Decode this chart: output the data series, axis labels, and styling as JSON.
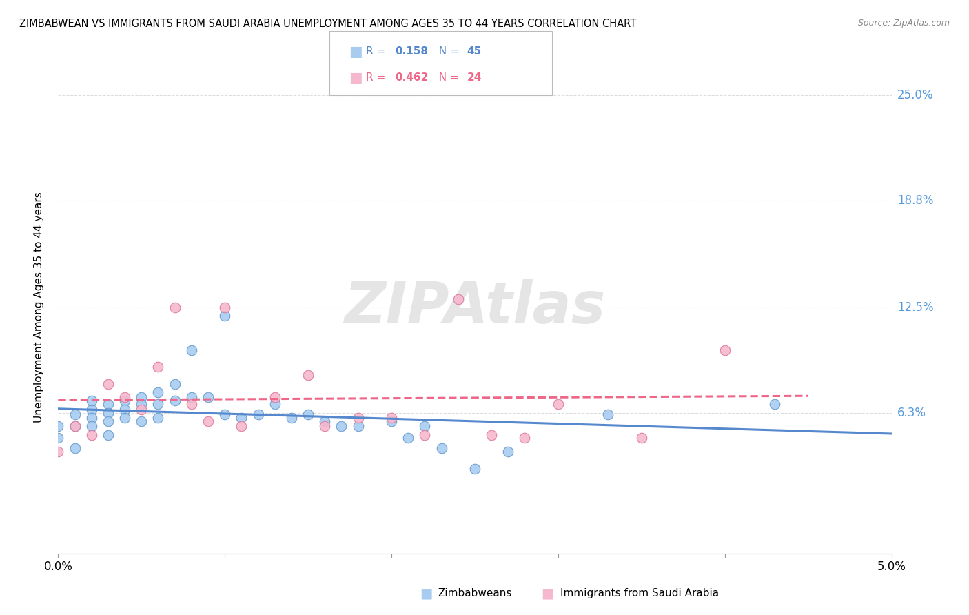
{
  "title": "ZIMBABWEAN VS IMMIGRANTS FROM SAUDI ARABIA UNEMPLOYMENT AMONG AGES 35 TO 44 YEARS CORRELATION CHART",
  "source": "Source: ZipAtlas.com",
  "ylabel_labels": [
    "6.3%",
    "12.5%",
    "18.8%",
    "25.0%"
  ],
  "ylabel_values": [
    0.063,
    0.125,
    0.188,
    0.25
  ],
  "xlim": [
    0.0,
    0.05
  ],
  "ylim": [
    -0.02,
    0.27
  ],
  "watermark": "ZIPAtlas",
  "color_blue": "#A8CCF0",
  "color_pink": "#F5B8CE",
  "color_blue_edge": "#6699CC",
  "color_pink_edge": "#DD7799",
  "color_line_blue": "#5588CC",
  "color_line_pink": "#EE6688",
  "color_ylabel": "#5599DD",
  "grid_color": "#DDDDDD",
  "background_color": "#FFFFFF",
  "zim_x": [
    0.0,
    0.0,
    0.001,
    0.001,
    0.001,
    0.002,
    0.002,
    0.002,
    0.002,
    0.003,
    0.003,
    0.003,
    0.003,
    0.004,
    0.004,
    0.004,
    0.005,
    0.005,
    0.005,
    0.006,
    0.006,
    0.006,
    0.007,
    0.007,
    0.008,
    0.008,
    0.009,
    0.01,
    0.01,
    0.011,
    0.012,
    0.013,
    0.014,
    0.015,
    0.016,
    0.017,
    0.018,
    0.02,
    0.021,
    0.022,
    0.023,
    0.025,
    0.027,
    0.033,
    0.043
  ],
  "zim_y": [
    0.055,
    0.048,
    0.062,
    0.055,
    0.042,
    0.065,
    0.06,
    0.055,
    0.07,
    0.068,
    0.063,
    0.058,
    0.05,
    0.07,
    0.065,
    0.06,
    0.072,
    0.068,
    0.058,
    0.075,
    0.068,
    0.06,
    0.08,
    0.07,
    0.1,
    0.072,
    0.072,
    0.12,
    0.062,
    0.06,
    0.062,
    0.068,
    0.06,
    0.062,
    0.058,
    0.055,
    0.055,
    0.058,
    0.048,
    0.055,
    0.042,
    0.03,
    0.04,
    0.062,
    0.068
  ],
  "saudi_x": [
    0.0,
    0.001,
    0.002,
    0.003,
    0.004,
    0.005,
    0.006,
    0.007,
    0.008,
    0.009,
    0.01,
    0.011,
    0.013,
    0.015,
    0.016,
    0.018,
    0.02,
    0.022,
    0.024,
    0.026,
    0.028,
    0.03,
    0.035,
    0.04
  ],
  "saudi_y": [
    0.04,
    0.055,
    0.05,
    0.08,
    0.072,
    0.065,
    0.09,
    0.125,
    0.068,
    0.058,
    0.125,
    0.055,
    0.072,
    0.085,
    0.055,
    0.06,
    0.06,
    0.05,
    0.13,
    0.05,
    0.048,
    0.068,
    0.048,
    0.1
  ]
}
